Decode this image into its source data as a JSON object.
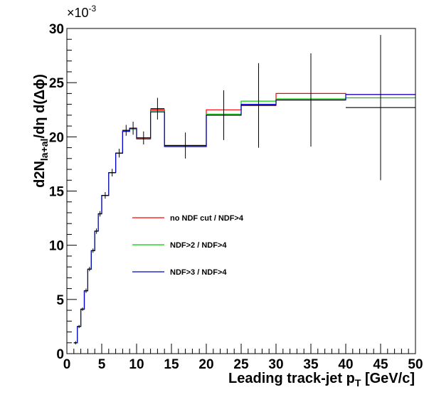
{
  "chart_data": {
    "type": "line",
    "xlabel": "Leading track-jet p",
    "xlabel_sub": "T",
    "xlabel_unit": "[GeV/c]",
    "ylabel_main": "d2N",
    "ylabel_sub": "la+al",
    "ylabel_rest": "/dη d(Δϕ)",
    "y_multiplier_base": "×10",
    "y_multiplier_exp": "-3",
    "xlim": [
      0,
      50
    ],
    "ylim": [
      0,
      30
    ],
    "x_ticks": [
      0,
      5,
      10,
      15,
      20,
      25,
      30,
      35,
      40,
      45,
      50
    ],
    "y_ticks": [
      0,
      5,
      10,
      15,
      20,
      25,
      30
    ],
    "grid": false,
    "legend_position": "center-left",
    "bin_edges": [
      1,
      1.5,
      2,
      2.5,
      3,
      3.5,
      4,
      4.5,
      5,
      6,
      7,
      8,
      9,
      10,
      12,
      14,
      20,
      25,
      30,
      40,
      50
    ],
    "series": [
      {
        "name": "no NDF cut / NDF>4",
        "color": "#ff0000",
        "values": [
          1.0,
          2.5,
          4.1,
          5.8,
          7.8,
          9.5,
          11.3,
          12.9,
          14.6,
          16.7,
          18.5,
          20.6,
          20.8,
          19.8,
          22.5,
          19.2,
          22.5,
          22.9,
          24.0,
          23.9
        ]
      },
      {
        "name": "NDF>2 / NDF>4",
        "color": "#00cc00",
        "values": [
          1.0,
          2.5,
          4.1,
          5.8,
          7.8,
          9.5,
          11.3,
          12.9,
          14.6,
          16.7,
          18.5,
          20.5,
          20.7,
          19.9,
          22.4,
          19.2,
          22.1,
          23.3,
          23.5,
          23.6
        ]
      },
      {
        "name": "NDF>3 / NDF>4",
        "color": "#0000cc",
        "values": [
          1.0,
          2.5,
          4.1,
          5.8,
          7.8,
          9.5,
          11.3,
          12.9,
          14.6,
          16.7,
          18.5,
          20.5,
          20.8,
          19.9,
          22.3,
          19.1,
          22.0,
          23.0,
          23.4,
          23.9
        ]
      }
    ],
    "reference": {
      "color": "#000000",
      "values": [
        1.0,
        2.5,
        4.1,
        5.8,
        7.8,
        9.5,
        11.3,
        12.9,
        14.6,
        16.7,
        18.5,
        20.6,
        20.8,
        19.9,
        22.6,
        19.2,
        22.0,
        22.9,
        23.4,
        22.7
      ],
      "errors": [
        0.15,
        0.15,
        0.15,
        0.2,
        0.2,
        0.2,
        0.25,
        0.25,
        0.3,
        0.35,
        0.4,
        0.5,
        0.6,
        0.6,
        1.0,
        1.2,
        2.3,
        3.9,
        4.3,
        6.7
      ]
    }
  }
}
